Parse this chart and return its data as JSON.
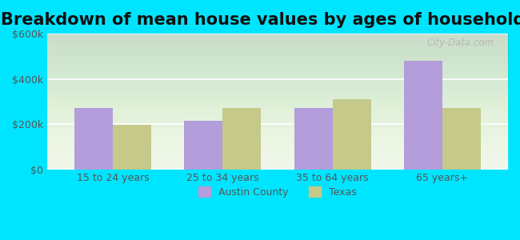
{
  "title": "Breakdown of mean house values by ages of householders",
  "categories": [
    "15 to 24 years",
    "25 to 34 years",
    "35 to 64 years",
    "65 years+"
  ],
  "austin_county": [
    270000,
    215000,
    270000,
    480000
  ],
  "texas": [
    195000,
    270000,
    310000,
    270000
  ],
  "austin_color": "#b39ddb",
  "texas_color": "#c5c98a",
  "background_outer": "#00e5ff",
  "background_inner_top": "#e8f5e9",
  "background_inner_bottom": "#f9ffe0",
  "ylim": [
    0,
    600000
  ],
  "yticks": [
    0,
    200000,
    400000,
    600000
  ],
  "ytick_labels": [
    "$0",
    "$200k",
    "$400k",
    "$600k"
  ],
  "legend_labels": [
    "Austin County",
    "Texas"
  ],
  "title_fontsize": 15,
  "bar_width": 0.35,
  "watermark": "City-Data.com"
}
